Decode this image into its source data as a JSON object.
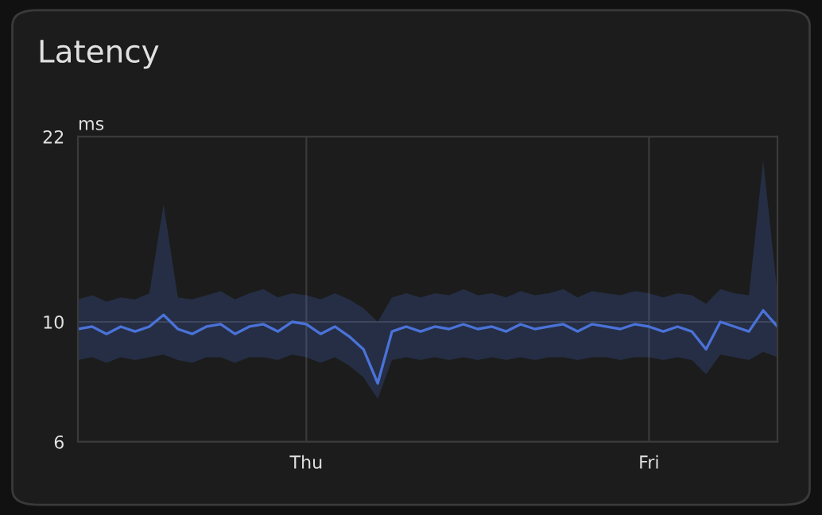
{
  "chart_data": {
    "type": "line",
    "title": "Latency",
    "ylabel": "ms",
    "categories": [
      null,
      null,
      null,
      null,
      null,
      null,
      null,
      null,
      null,
      null,
      null,
      null,
      null,
      null,
      null,
      null,
      "Thu",
      null,
      null,
      null,
      null,
      null,
      null,
      null,
      null,
      null,
      null,
      null,
      null,
      null,
      null,
      null,
      null,
      null,
      null,
      null,
      null,
      null,
      null,
      null,
      "Fri",
      null,
      null,
      null,
      null,
      null,
      null,
      null,
      null,
      null
    ],
    "series": [
      {
        "color": "#4a72d8",
        "values": [
          9.7,
          9.8,
          9.5,
          9.8,
          9.6,
          9.8,
          10.3,
          9.7,
          9.5,
          9.8,
          9.9,
          9.5,
          9.8,
          9.9,
          9.6,
          10.0,
          9.9,
          9.5,
          9.8,
          9.4,
          8.9,
          7.7,
          9.6,
          9.8,
          9.6,
          9.8,
          9.7,
          9.9,
          9.7,
          9.8,
          9.6,
          9.9,
          9.7,
          9.8,
          9.9,
          9.6,
          9.9,
          9.8,
          9.7,
          9.9,
          9.8,
          9.6,
          9.8,
          9.6,
          8.9,
          10.0,
          9.8,
          9.6,
          10.5,
          9.8
        ],
        "lower": [
          8.5,
          8.6,
          8.4,
          8.6,
          8.5,
          8.6,
          8.7,
          8.5,
          8.4,
          8.6,
          8.6,
          8.4,
          8.6,
          8.6,
          8.5,
          8.7,
          8.6,
          8.4,
          8.6,
          8.3,
          7.9,
          7.2,
          8.5,
          8.6,
          8.5,
          8.6,
          8.5,
          8.6,
          8.5,
          8.6,
          8.5,
          8.6,
          8.5,
          8.6,
          8.6,
          8.5,
          8.6,
          8.6,
          8.5,
          8.6,
          8.6,
          8.5,
          8.6,
          8.5,
          8.0,
          8.7,
          8.6,
          8.5,
          8.8,
          8.6
        ],
        "upper": [
          11.0,
          11.2,
          10.9,
          11.1,
          11.0,
          11.3,
          16.5,
          11.1,
          11.0,
          11.2,
          11.4,
          11.0,
          11.3,
          11.5,
          11.1,
          11.3,
          11.2,
          11.0,
          11.3,
          11.0,
          10.6,
          10.0,
          11.1,
          11.3,
          11.1,
          11.3,
          11.2,
          11.5,
          11.2,
          11.3,
          11.1,
          11.4,
          11.2,
          11.3,
          11.5,
          11.1,
          11.4,
          11.3,
          11.2,
          11.4,
          11.3,
          11.1,
          11.3,
          11.2,
          10.8,
          11.5,
          11.3,
          11.2,
          19.9,
          11.3
        ]
      }
    ],
    "log": "y",
    "ylim": [
      6,
      22
    ],
    "yticks": [
      6,
      10,
      22
    ],
    "grid": true,
    "marker": "none",
    "line_style": "solid"
  }
}
